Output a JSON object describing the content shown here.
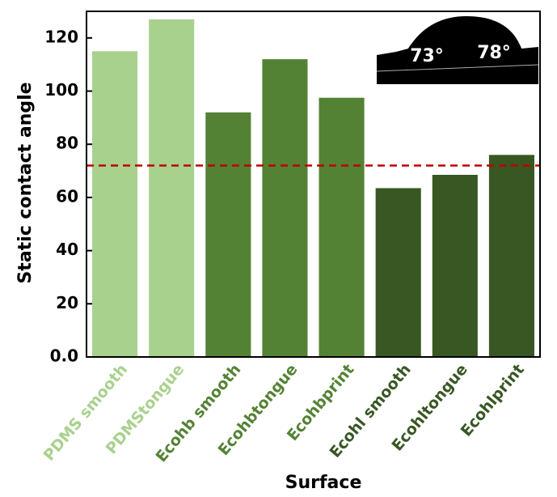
{
  "chart_data": {
    "type": "bar",
    "x_label": "Surface",
    "y_label": "Static contact angle",
    "categories": [
      "PDMS smooth",
      "PDMStongue",
      "Ecohb smooth",
      "Ecohbtongue",
      "Ecohbprint",
      "Ecohl smooth",
      "Ecohltongue",
      "Ecohlprint"
    ],
    "values": [
      115,
      127,
      92,
      112,
      97.5,
      63.5,
      68.5,
      76
    ],
    "colors": [
      "#a9d18e",
      "#a9d18e",
      "#548235",
      "#548235",
      "#548235",
      "#385723",
      "#385723",
      "#385723"
    ],
    "ylim": [
      0,
      130
    ],
    "yticks": [
      {
        "value": 0,
        "label": "0.0"
      },
      20,
      40,
      60,
      80,
      100,
      120
    ],
    "reference_line": {
      "value": 72,
      "color": "#c00000"
    },
    "annotations": [
      "73°",
      "78°"
    ]
  }
}
